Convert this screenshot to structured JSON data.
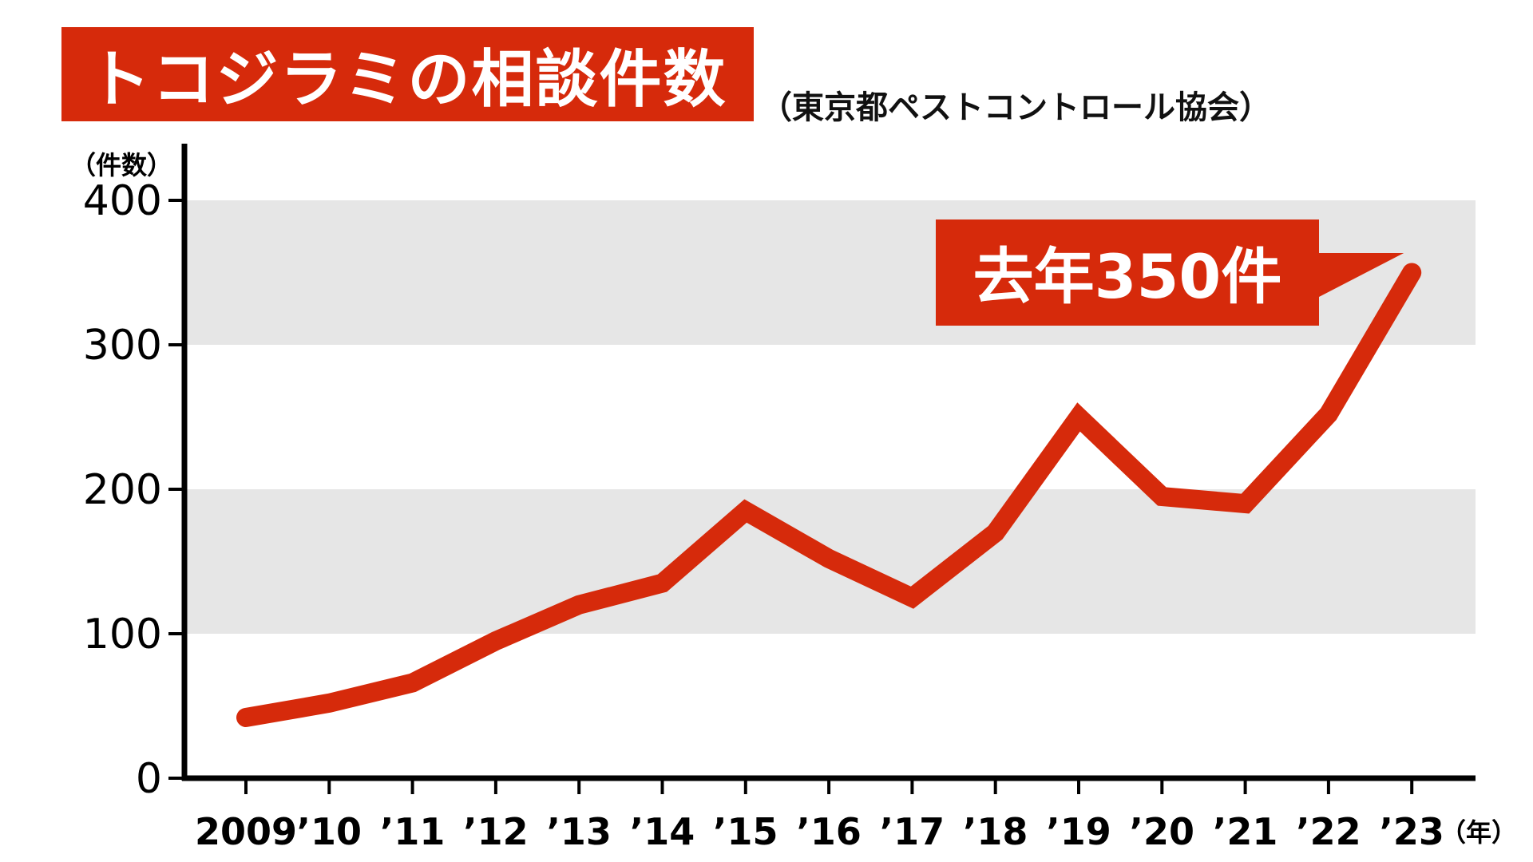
{
  "header": {
    "title": "トコジラミの相談件数",
    "source": "（東京都ペストコントロール協会）"
  },
  "colors": {
    "accent": "#d62a0b",
    "band": "#e6e6e6",
    "axis": "#000000"
  },
  "chart_data": {
    "type": "line",
    "title": "トコジラミの相談件数",
    "subtitle": "（東京都ペストコントロール協会）",
    "ylabel": "（件数）",
    "xlabel": "（年）",
    "ylim": [
      0,
      400
    ],
    "yticks": [
      0,
      100,
      200,
      300,
      400
    ],
    "categories": [
      "2009",
      "’10",
      "’11",
      "’12",
      "’13",
      "’14",
      "’15",
      "’16",
      "’17",
      "’18",
      "’19",
      "’20",
      "’21",
      "’22",
      "’23"
    ],
    "series": [
      {
        "values": [
          42,
          52,
          66,
          95,
          120,
          135,
          185,
          152,
          125,
          170,
          250,
          195,
          190,
          252,
          350
        ]
      }
    ],
    "grid": "alternating horizontal bands",
    "annotation": {
      "text": "去年350件",
      "target_index": 14
    }
  }
}
